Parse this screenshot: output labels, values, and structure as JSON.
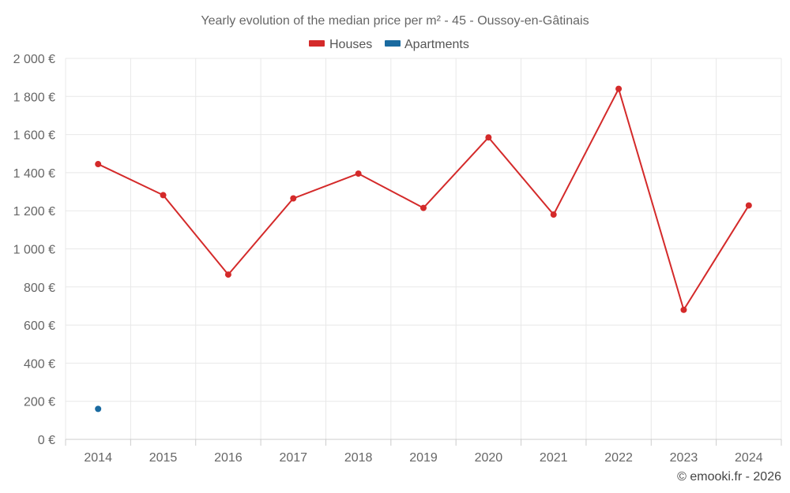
{
  "chart_data": {
    "type": "line",
    "title": "Yearly evolution of the median price per m² - 45 - Oussoy-en-Gâtinais",
    "categories": [
      "2014",
      "2015",
      "2016",
      "2017",
      "2018",
      "2019",
      "2020",
      "2021",
      "2022",
      "2023",
      "2024"
    ],
    "y_ticks": [
      0,
      200,
      400,
      600,
      800,
      1000,
      1200,
      1400,
      1600,
      1800,
      2000
    ],
    "y_tick_labels": [
      "0 €",
      "200 €",
      "400 €",
      "600 €",
      "800 €",
      "1 000 €",
      "1 200 €",
      "1 400 €",
      "1 600 €",
      "1 800 €",
      "2 000 €"
    ],
    "ylim": [
      0,
      2000
    ],
    "grid": true,
    "legend_position": "top-center",
    "series": [
      {
        "name": "Houses",
        "color": "#d42a2a",
        "values": [
          1445,
          1282,
          865,
          1265,
          1395,
          1215,
          1585,
          1180,
          1840,
          680,
          1228
        ]
      },
      {
        "name": "Apartments",
        "color": "#1a6aa0",
        "values": [
          160,
          null,
          null,
          null,
          null,
          null,
          null,
          null,
          null,
          null,
          null
        ]
      }
    ]
  },
  "credit": "© emooki.fr - 2026"
}
